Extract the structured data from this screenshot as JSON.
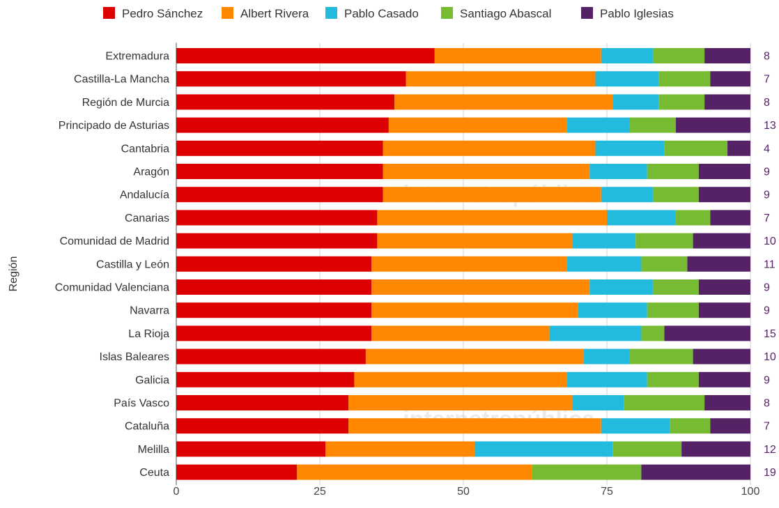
{
  "chart_data": {
    "type": "bar",
    "orientation": "horizontal",
    "stacked": true,
    "ylabel": "Región",
    "xlim": [
      0,
      100
    ],
    "x_ticks": [
      0,
      25,
      50,
      75,
      100
    ],
    "grid": true,
    "legend_position": "top",
    "watermark": "internetrepública",
    "categories": [
      "Extremadura",
      "Castilla-La Mancha",
      "Región de Murcia",
      "Principado de Asturias",
      "Cantabria",
      "Aragón",
      "Andalucía",
      "Canarias",
      "Comunidad de Madrid",
      "Castilla y León",
      "Comunidad Valenciana",
      "Navarra",
      "La Rioja",
      "Islas Baleares",
      "Galicia",
      "País Vasco",
      "Cataluña",
      "Melilla",
      "Ceuta"
    ],
    "series": [
      {
        "name": "Pedro Sánchez",
        "color": "#dd0000",
        "values": [
          45,
          40,
          38,
          37,
          36,
          36,
          36,
          35,
          35,
          34,
          34,
          34,
          34,
          33,
          31,
          30,
          30,
          26,
          21
        ]
      },
      {
        "name": "Albert Rivera",
        "color": "#ff8800",
        "values": [
          29,
          33,
          38,
          31,
          37,
          36,
          38,
          40,
          34,
          34,
          38,
          36,
          31,
          38,
          37,
          39,
          44,
          26,
          41
        ]
      },
      {
        "name": "Pablo Casado",
        "color": "#22bbdd",
        "values": [
          9,
          11,
          8,
          11,
          12,
          10,
          9,
          12,
          11,
          13,
          11,
          12,
          16,
          8,
          14,
          9,
          12,
          24,
          0
        ]
      },
      {
        "name": "Santiago Abascal",
        "color": "#77bb33",
        "values": [
          9,
          9,
          8,
          8,
          11,
          9,
          8,
          6,
          10,
          8,
          8,
          9,
          4,
          11,
          9,
          14,
          7,
          12,
          19
        ]
      },
      {
        "name": "Pablo Iglesias",
        "color": "#552266",
        "values": [
          8,
          7,
          8,
          13,
          4,
          9,
          9,
          7,
          10,
          11,
          9,
          9,
          15,
          10,
          9,
          8,
          7,
          12,
          19
        ]
      }
    ]
  }
}
